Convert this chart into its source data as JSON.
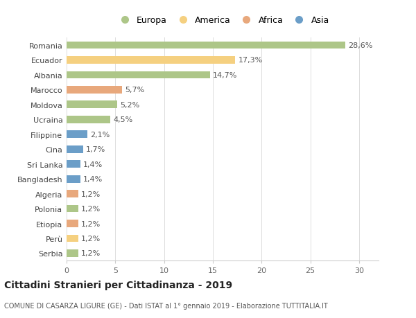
{
  "countries": [
    "Romania",
    "Ecuador",
    "Albania",
    "Marocco",
    "Moldova",
    "Ucraina",
    "Filippine",
    "Cina",
    "Sri Lanka",
    "Bangladesh",
    "Algeria",
    "Polonia",
    "Etiopia",
    "Perù",
    "Serbia"
  ],
  "values": [
    28.6,
    17.3,
    14.7,
    5.7,
    5.2,
    4.5,
    2.1,
    1.7,
    1.4,
    1.4,
    1.2,
    1.2,
    1.2,
    1.2,
    1.2
  ],
  "labels": [
    "28,6%",
    "17,3%",
    "14,7%",
    "5,7%",
    "5,2%",
    "4,5%",
    "2,1%",
    "1,7%",
    "1,4%",
    "1,4%",
    "1,2%",
    "1,2%",
    "1,2%",
    "1,2%",
    "1,2%"
  ],
  "continents": [
    "Europa",
    "America",
    "Europa",
    "Africa",
    "Europa",
    "Europa",
    "Asia",
    "Asia",
    "Asia",
    "Asia",
    "Africa",
    "Europa",
    "Africa",
    "America",
    "Europa"
  ],
  "colors": {
    "Europa": "#adc688",
    "America": "#f5d080",
    "Africa": "#e8a87c",
    "Asia": "#6b9ec8"
  },
  "legend_order": [
    "Europa",
    "America",
    "Africa",
    "Asia"
  ],
  "xlim": [
    0,
    32
  ],
  "xticks": [
    0,
    5,
    10,
    15,
    20,
    25,
    30
  ],
  "title": "Cittadini Stranieri per Cittadinanza - 2019",
  "subtitle": "COMUNE DI CASARZA LIGURE (GE) - Dati ISTAT al 1° gennaio 2019 - Elaborazione TUTTITALIA.IT",
  "bg_color": "#ffffff",
  "bar_height": 0.5,
  "label_fontsize": 8,
  "tick_fontsize": 8,
  "title_fontsize": 10,
  "subtitle_fontsize": 7
}
